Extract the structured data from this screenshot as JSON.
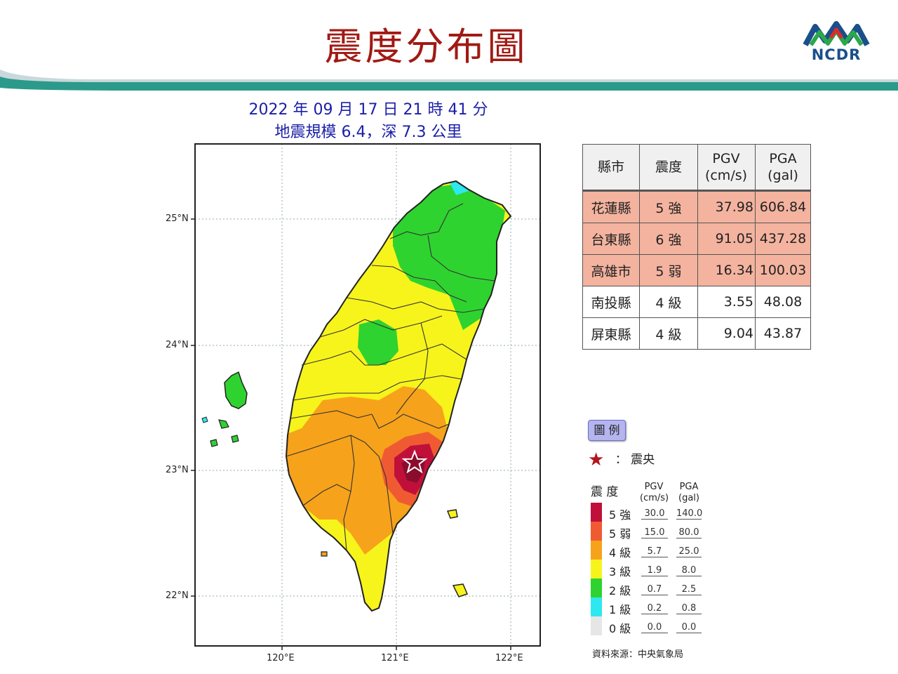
{
  "page": {
    "title": "震度分布圖",
    "logo_text": "NCDR"
  },
  "map": {
    "title_line1": "2022 年 09 月 17 日 21 時 41 分",
    "title_line2": "地震規模 6.4，深 7.3 公里",
    "lat_labels": [
      "25°N",
      "24°N",
      "23°N",
      "22°N"
    ],
    "lon_labels": [
      "120°E",
      "121°E",
      "122°E"
    ],
    "epicenter": {
      "lon": 121.16,
      "lat": 23.09
    }
  },
  "table": {
    "headers": [
      "縣市",
      "震度",
      "PGV (cm/s)",
      "PGA (gal)"
    ],
    "header_pgv_1": "PGV",
    "header_pgv_2": "(cm/s)",
    "header_pga_1": "PGA",
    "header_pga_2": "(gal)",
    "rows": [
      {
        "county": "花蓮縣",
        "intensity": "5 強",
        "pgv": "37.98",
        "pga": "606.84",
        "highlight": true
      },
      {
        "county": "台東縣",
        "intensity": "6 強",
        "pgv": "91.05",
        "pga": "437.28",
        "highlight": true
      },
      {
        "county": "高雄市",
        "intensity": "5 弱",
        "pgv": "16.34",
        "pga": "100.03",
        "highlight": true
      },
      {
        "county": "南投縣",
        "intensity": "4 級",
        "pgv": "3.55",
        "pga": "48.08",
        "highlight": false
      },
      {
        "county": "屏東縣",
        "intensity": "4 級",
        "pgv": "9.04",
        "pga": "43.87",
        "highlight": false
      }
    ]
  },
  "legend": {
    "badge": "圖 例",
    "epicenter_colon": "：",
    "epicenter_label": "震央",
    "intensity_header": "震 度",
    "pgv_header_1": "PGV",
    "pgv_header_2": "(cm/s)",
    "pga_header_1": "PGA",
    "pga_header_2": "(gal)",
    "levels": [
      {
        "name": "5 強",
        "pgv": "30.0",
        "pga": "140.0",
        "color": "#c0103a"
      },
      {
        "name": "5 弱",
        "pgv": "15.0",
        "pga": "80.0",
        "color": "#f05a32"
      },
      {
        "name": "4 級",
        "pgv": "5.7",
        "pga": "25.0",
        "color": "#f7a21b"
      },
      {
        "name": "3 級",
        "pgv": "1.9",
        "pga": "8.0",
        "color": "#f7f41b"
      },
      {
        "name": "2 級",
        "pgv": "0.7",
        "pga": "2.5",
        "color": "#2fd32f"
      },
      {
        "name": "1 級",
        "pgv": "0.2",
        "pga": "0.8",
        "color": "#2ee8f0"
      },
      {
        "name": "0 級",
        "pgv": "0.0",
        "pga": "0.0",
        "color": "#e6e6e6"
      }
    ],
    "source": "資料來源：中央氣象局"
  }
}
